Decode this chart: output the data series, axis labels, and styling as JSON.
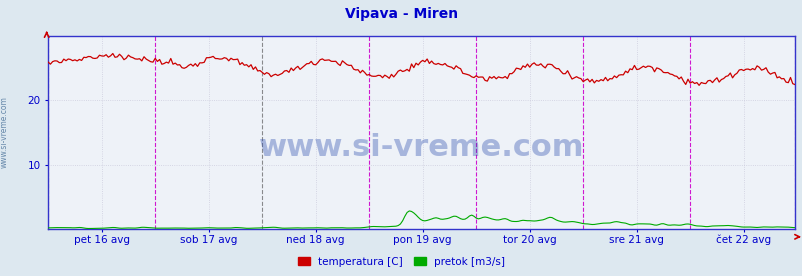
{
  "title": "Vipava - Miren",
  "title_color": "#0000cc",
  "title_fontsize": 10,
  "bg_color": "#dde8f0",
  "plot_bg_color": "#eef2f8",
  "grid_color": "#ccccdd",
  "watermark": "www.si-vreme.com",
  "watermark_color": "#2244aa",
  "watermark_fontsize": 22,
  "ylabel_color": "#0000cc",
  "xlabel_color": "#0000cc",
  "yticks": [
    10,
    20
  ],
  "ylim": [
    0,
    30
  ],
  "n_points": 336,
  "x_tick_labels": [
    "pet 16 avg",
    "sob 17 avg",
    "ned 18 avg",
    "pon 19 avg",
    "tor 20 avg",
    "sre 21 avg",
    "čet 22 avg"
  ],
  "vline_color_main": "#cc00cc",
  "vline_color_first": "#444444",
  "legend_temp_color": "#cc0000",
  "legend_flow_color": "#00aa00",
  "legend_temp_label": "temperatura [C]",
  "legend_flow_label": "pretok [m3/s]",
  "border_color": "#3333cc",
  "sideways_label": "www.si-vreme.com",
  "sideways_color": "#6688aa"
}
